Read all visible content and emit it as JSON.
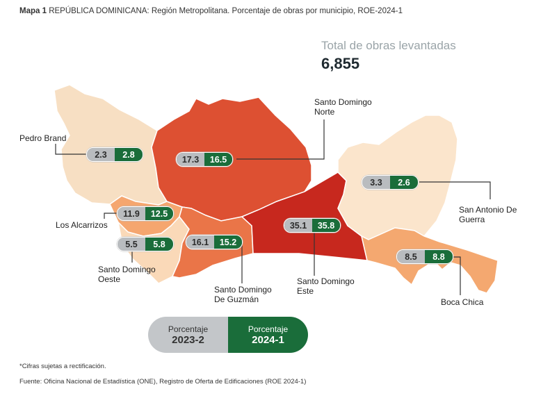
{
  "title": {
    "prefix": "Mapa 1",
    "text": "REPÚBLICA DOMINICANA: Región Metropolitana. Porcentaje de obras por municipio, ROE-2024-1"
  },
  "total": {
    "label": "Total de obras levantadas",
    "value": "6,855"
  },
  "colors": {
    "pedro_brand": "#f7dfc3",
    "los_alcarrizos": "#f5a66f",
    "santo_domingo_oeste": "#fad9b8",
    "santo_domingo_norte": "#dd5032",
    "santo_domingo_de_guzman": "#ea7548",
    "santo_domingo_este": "#c7281e",
    "san_antonio_de_guerra": "#fbe5cc",
    "boca_chica": "#f4a870",
    "badge_2023": "#b9bcbf",
    "badge_2024": "#1a6d3a"
  },
  "municipalities": {
    "pedro_brand": {
      "name": "Pedro Brand",
      "v2023": "2.3",
      "v2024": "2.8"
    },
    "santo_domingo_norte": {
      "name_line1": "Santo Domingo",
      "name_line2": "Norte",
      "v2023": "17.3",
      "v2024": "16.5"
    },
    "los_alcarrizos": {
      "name": "Los Alcarrizos",
      "v2023": "11.9",
      "v2024": "12.5"
    },
    "santo_domingo_oeste": {
      "name_line1": "Santo Domingo",
      "name_line2": "Oeste",
      "v2023": "5.5",
      "v2024": "5.8"
    },
    "santo_domingo_de_guzman": {
      "name_line1": "Santo Domingo",
      "name_line2": "De Guzmán",
      "v2023": "16.1",
      "v2024": "15.2"
    },
    "santo_domingo_este": {
      "name_line1": "Santo Domingo",
      "name_line2": "Este",
      "v2023": "35.1",
      "v2024": "35.8"
    },
    "san_antonio_de_guerra": {
      "name_line1": "San Antonio De",
      "name_line2": "Guerra",
      "v2023": "3.3",
      "v2024": "2.6"
    },
    "boca_chica": {
      "name": "Boca Chica",
      "v2023": "8.5",
      "v2024": "8.8"
    }
  },
  "legend": {
    "left_line1": "Porcentaje",
    "left_line2": "2023-2",
    "right_line1": "Porcentaje",
    "right_line2": "2024-1"
  },
  "note": "*Cifras sujetas a rectificación.",
  "source": "Fuente: Oficina Nacional de Estadística (ONE), Registro de Oferta de Edificaciones (ROE 2024-1)"
}
